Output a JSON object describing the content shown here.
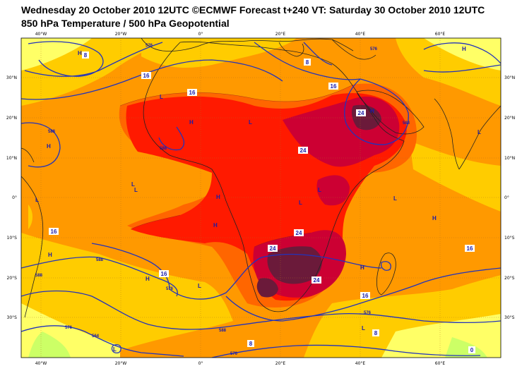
{
  "header": {
    "title_line1": "Wednesday 20 October 2010 12UTC ©ECMWF Forecast t+240 VT: Saturday 30 October 2010 12UTC",
    "title_line2": "850 hPa Temperature / 500 hPa Geopotential"
  },
  "axes": {
    "top_lon_ticks": [
      "40°W",
      "20°W",
      "0°",
      "20°E",
      "40°E",
      "60°E"
    ],
    "bottom_lon_ticks": [
      "40°W",
      "20°W",
      "0°",
      "20°E",
      "40°E",
      "60°E"
    ],
    "lat_ticks": [
      "30°N",
      "20°N",
      "10°N",
      "0°",
      "10°S",
      "20°S",
      "30°S"
    ]
  },
  "temperature_labels": [
    "16",
    "16",
    "16",
    "24",
    "24",
    "24",
    "16",
    "16",
    "8",
    "8",
    "16",
    "24",
    "24",
    "16",
    "8",
    "0",
    "8"
  ],
  "geopotential_labels": [
    "576",
    "576",
    "588",
    "588",
    "588",
    "588",
    "576",
    "564",
    "588",
    "576",
    "576",
    "588",
    "576"
  ],
  "pressure_centers": [
    "H",
    "L",
    "L",
    "H",
    "H",
    "L",
    "L",
    "L",
    "H",
    "L",
    "H",
    "L",
    "H",
    "H",
    "L",
    "H",
    "H",
    "L",
    "H",
    "L",
    "L",
    "H",
    "L"
  ],
  "colors": {
    "t_0_8": "#ffff66",
    "t_8_16": "#ffcc00",
    "t_16_20": "#ff9900",
    "t_20_24": "#ff6600",
    "t_24_28": "#ff1a00",
    "t_28_32": "#cc0033",
    "t_32_plus": "#6b1a3a",
    "cool": "#ccff66",
    "geopotential_line": "#2233bb",
    "coastline": "#222222"
  }
}
